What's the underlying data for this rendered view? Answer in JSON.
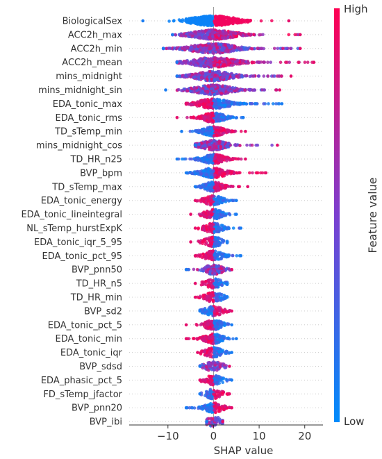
{
  "chart_data": {
    "type": "scatter",
    "plot_kind": "beeswarm",
    "xlabel": "SHAP value",
    "xlim": [
      -18.5,
      24
    ],
    "x_ticks": [
      -10,
      0,
      10,
      20
    ],
    "zero_line": true,
    "grid": false,
    "colorbar": {
      "title": "Feature value",
      "high_label": "High",
      "low_label": "Low",
      "high_color": "#ff0052",
      "low_color": "#008bfb"
    },
    "features": [
      {
        "name": "BiologicalSex",
        "min": -15.5,
        "max": 16.5,
        "low_min": -15.5,
        "low_max": 0,
        "high_min": 0,
        "high_max": 16.5,
        "pattern": "split_low_left"
      },
      {
        "name": "ACC2h_max",
        "min": -9,
        "max": 19,
        "pattern": "mixed_high_right"
      },
      {
        "name": "ACC2h_min",
        "min": -11,
        "max": 19,
        "pattern": "mixed"
      },
      {
        "name": "ACC2h_mean",
        "min": -8,
        "max": 22,
        "pattern": "mixed_high_right"
      },
      {
        "name": "mins_midnight",
        "min": -8,
        "max": 17,
        "pattern": "mixed"
      },
      {
        "name": "mins_midnight_sin",
        "min": -10.5,
        "max": 14.5,
        "pattern": "mixed"
      },
      {
        "name": "EDA_tonic_max",
        "min": -6,
        "max": 15,
        "pattern": "high_left"
      },
      {
        "name": "EDA_tonic_rms",
        "min": -8,
        "max": 6.5,
        "pattern": "high_left"
      },
      {
        "name": "TD_sTemp_min",
        "min": -7,
        "max": 7,
        "pattern": "high_right"
      },
      {
        "name": "mins_midnight_cos",
        "min": -4,
        "max": 14,
        "pattern": "mixed"
      },
      {
        "name": "TD_HR_n25",
        "min": -8,
        "max": 7,
        "pattern": "high_right"
      },
      {
        "name": "BVP_bpm",
        "min": -6,
        "max": 11.5,
        "pattern": "high_right"
      },
      {
        "name": "TD_sTemp_max",
        "min": -4,
        "max": 7.5,
        "pattern": "high_right"
      },
      {
        "name": "EDA_tonic_energy",
        "min": -4,
        "max": 5,
        "pattern": "high_left"
      },
      {
        "name": "EDA_tonic_lineintegral",
        "min": -5,
        "max": 5,
        "pattern": "high_left"
      },
      {
        "name": "NL_sTemp_hurstExpK",
        "min": -4,
        "max": 6,
        "pattern": "high_left"
      },
      {
        "name": "EDA_tonic_iqr_5_95",
        "min": -5,
        "max": 3,
        "pattern": "high_left"
      },
      {
        "name": "EDA_tonic_pct_95",
        "min": -4,
        "max": 6,
        "pattern": "high_left"
      },
      {
        "name": "BVP_pnn50",
        "min": -6,
        "max": 4,
        "pattern": "mixed"
      },
      {
        "name": "TD_HR_n5",
        "min": -4,
        "max": 3,
        "pattern": "high_left"
      },
      {
        "name": "TD_HR_min",
        "min": -4,
        "max": 3,
        "pattern": "high_left"
      },
      {
        "name": "BVP_sd2",
        "min": -3,
        "max": 4,
        "pattern": "high_right"
      },
      {
        "name": "EDA_tonic_pct_5",
        "min": -6,
        "max": 4,
        "pattern": "high_left"
      },
      {
        "name": "EDA_tonic_min",
        "min": -6,
        "max": 5,
        "pattern": "high_left"
      },
      {
        "name": "EDA_tonic_iqr",
        "min": -3.5,
        "max": 4,
        "pattern": "high_left"
      },
      {
        "name": "BVP_sdsd",
        "min": -3,
        "max": 3.5,
        "pattern": "mixed"
      },
      {
        "name": "EDA_phasic_pct_5",
        "min": -3,
        "max": 4,
        "pattern": "high_left"
      },
      {
        "name": "FD_sTemp_jfactor",
        "min": -3,
        "max": 3.5,
        "pattern": "high_right"
      },
      {
        "name": "BVP_pnn20",
        "min": -6,
        "max": 4,
        "pattern": "high_right"
      },
      {
        "name": "BVP_ibi",
        "min": -1.5,
        "max": 2,
        "pattern": "mixed"
      }
    ]
  }
}
